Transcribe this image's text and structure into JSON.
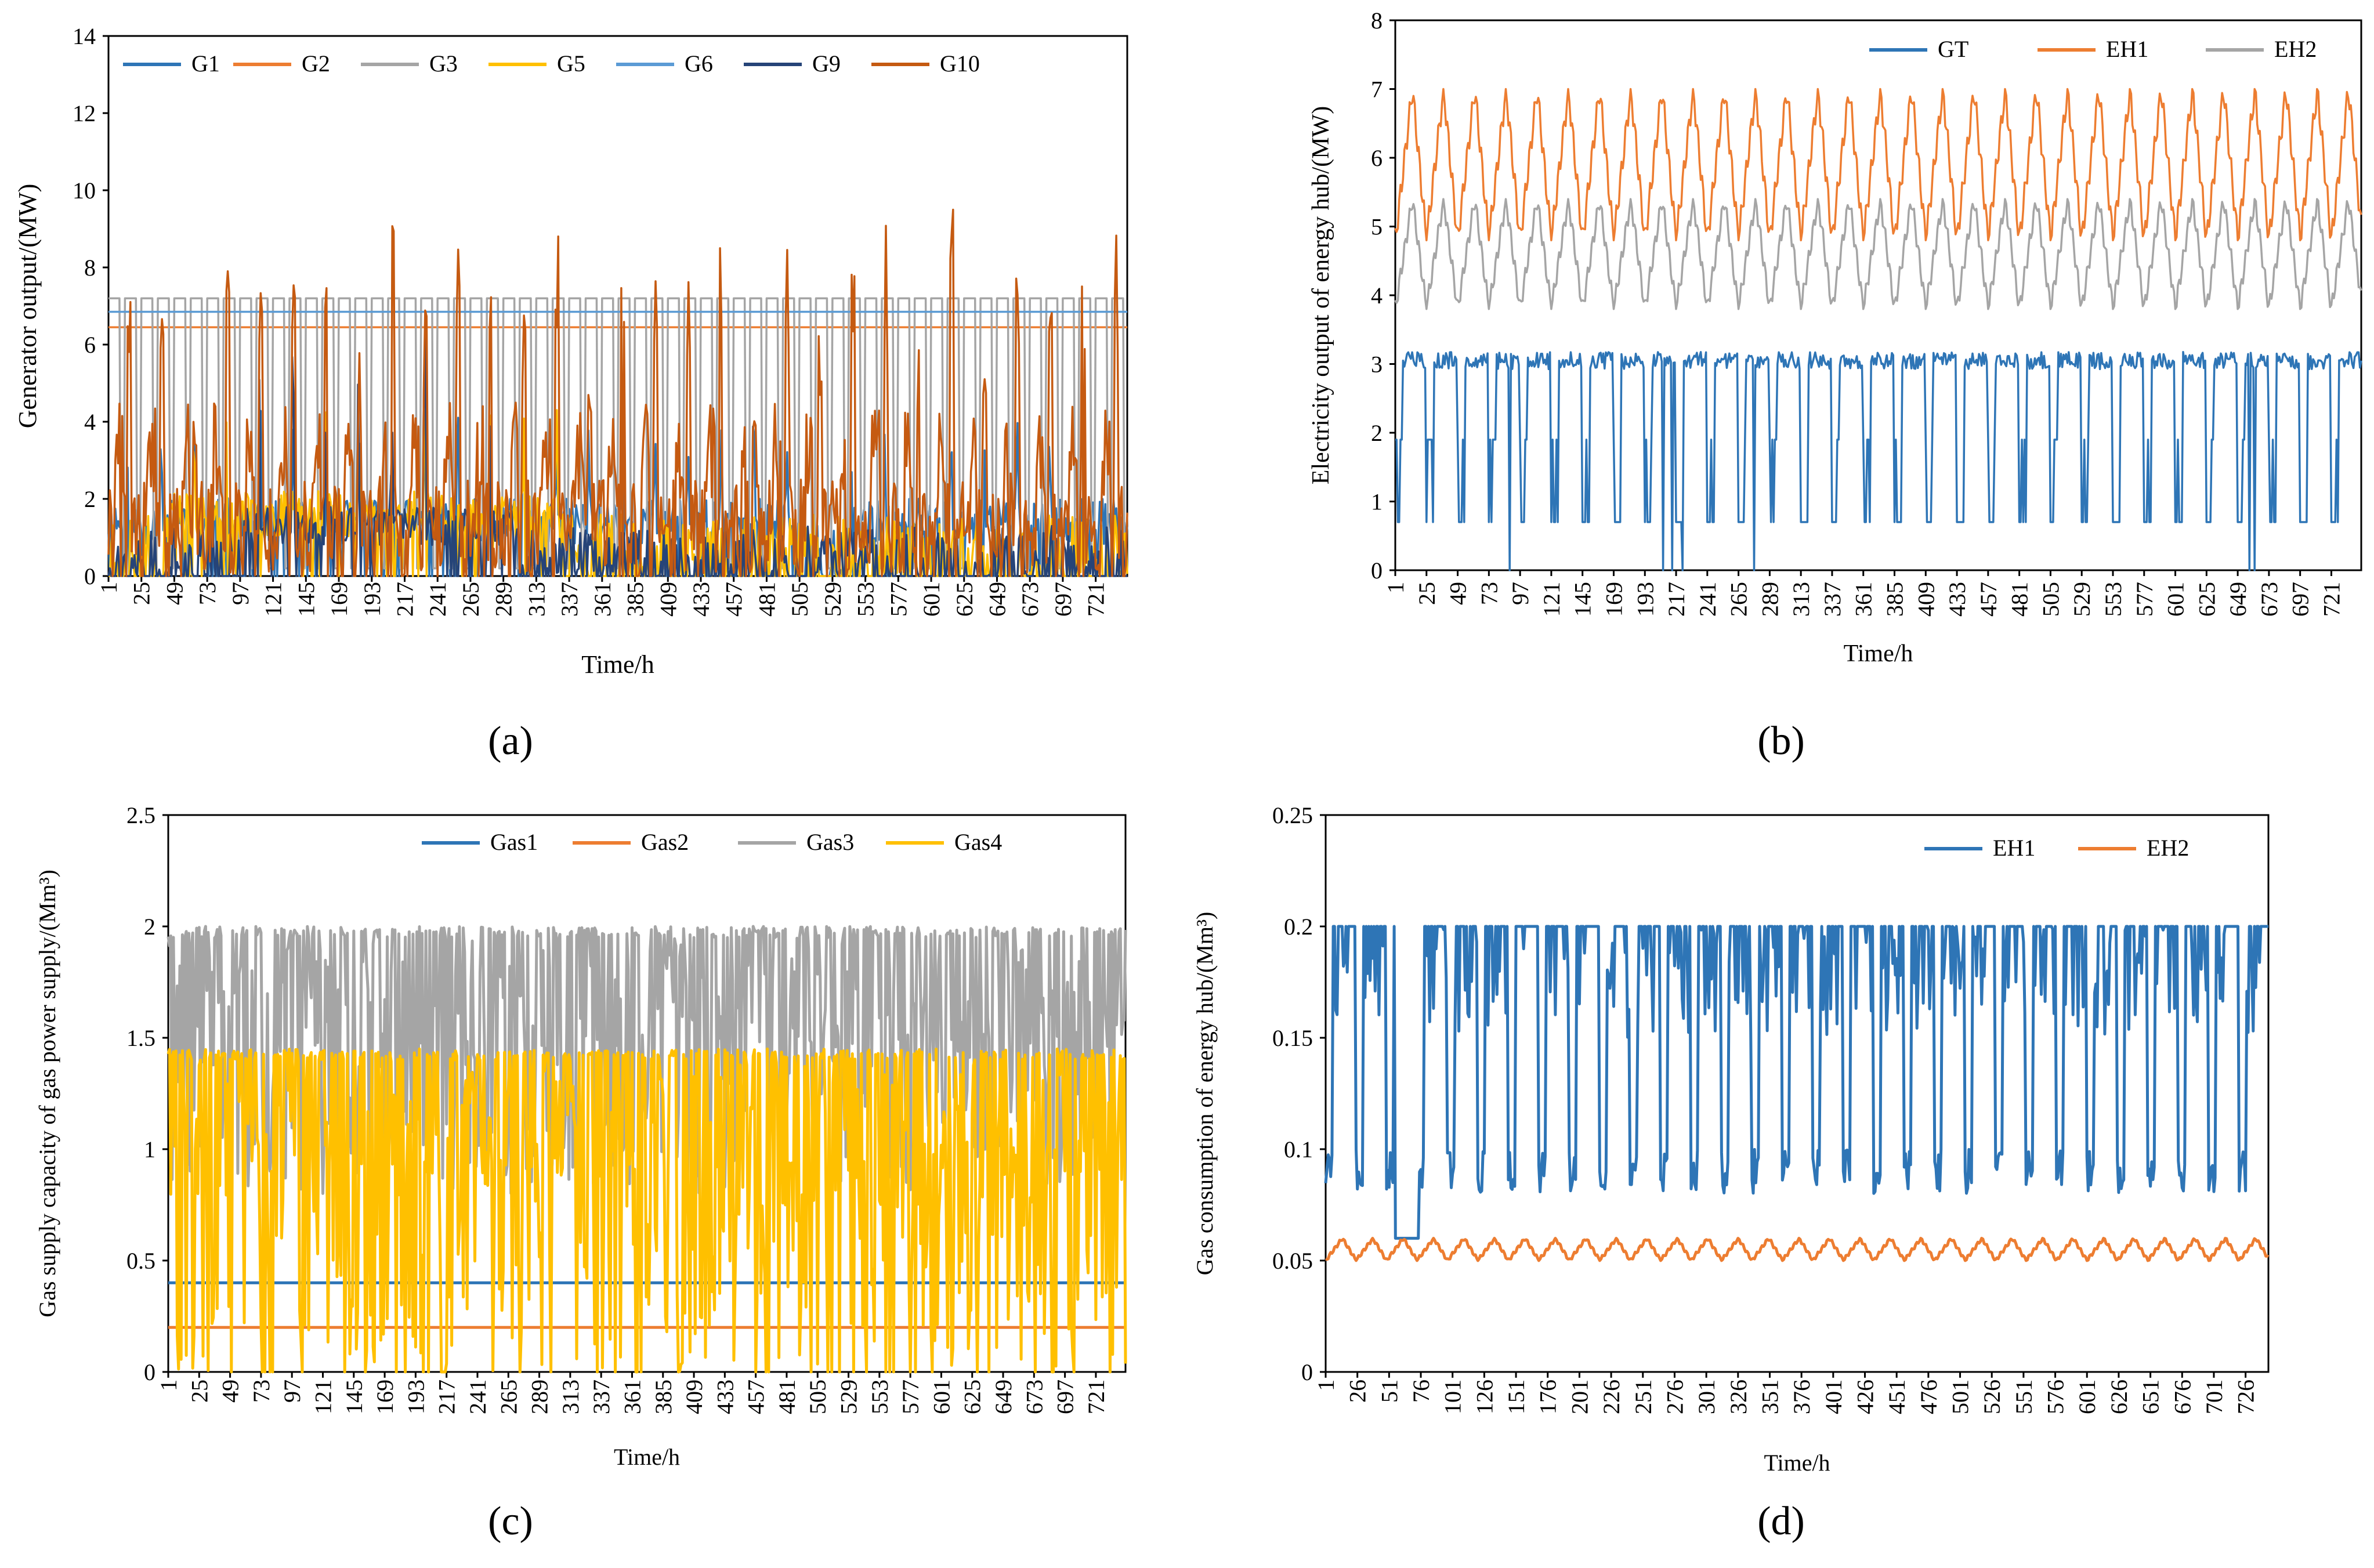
{
  "figure": {
    "panels": [
      {
        "id": "a",
        "caption": "(a)",
        "chart_data": {
          "type": "line",
          "title": "",
          "xlabel": "Time/h",
          "ylabel": "Generator output/(MW)",
          "ylim": [
            0,
            14
          ],
          "yticks": [
            0,
            2,
            4,
            6,
            8,
            10,
            12,
            14
          ],
          "xticks": [
            1,
            25,
            49,
            73,
            97,
            121,
            145,
            169,
            193,
            217,
            241,
            265,
            289,
            313,
            337,
            361,
            385,
            409,
            433,
            457,
            481,
            505,
            529,
            553,
            577,
            601,
            625,
            649,
            673,
            697,
            721
          ],
          "xrange": [
            1,
            744
          ],
          "legend_position": "top",
          "series": [
            {
              "name": "G1",
              "color": "#2e75b6",
              "pattern": {
                "kind": "noisy",
                "base": 1.4,
                "amp": 1.2,
                "peak": 2.5,
                "period": 24,
                "seed": 11,
                "max": 8.6,
                "active": [
                  [
                    1,
                    500
                  ],
                  [
                    540,
                    744
                  ]
                ]
              }
            },
            {
              "name": "G2",
              "color": "#ed7d31",
              "pattern": {
                "kind": "flat",
                "value": 6.45
              }
            },
            {
              "name": "G3",
              "color": "#a5a5a5",
              "pattern": {
                "kind": "steps",
                "high": 7.2,
                "low": 0.2,
                "period": 12,
                "duty": 0.75
              }
            },
            {
              "name": "G5",
              "color": "#ffc000",
              "pattern": {
                "kind": "noisy",
                "base": 1.6,
                "amp": 1.2,
                "peak": 2.8,
                "period": 24,
                "seed": 23,
                "max": 4.3,
                "active": [
                  [
                    40,
                    330
                  ]
                ]
              }
            },
            {
              "name": "G6",
              "color": "#5b9bd5",
              "pattern": {
                "kind": "flat",
                "value": 6.85
              }
            },
            {
              "name": "G9",
              "color": "#264478",
              "pattern": {
                "kind": "noisy",
                "base": 1.3,
                "amp": 1.0,
                "peak": 5.5,
                "period": 24,
                "seed": 37,
                "max": 8.6,
                "active": [
                  [
                    100,
                    300
                  ]
                ]
              }
            },
            {
              "name": "G10",
              "color": "#c55a11",
              "pattern": {
                "kind": "spiky",
                "base": 1.2,
                "amp": 2.6,
                "peak": 9.8,
                "period": 24,
                "seed": 41,
                "max": 11
              }
            }
          ]
        }
      },
      {
        "id": "b",
        "caption": "(b)",
        "chart_data": {
          "type": "line",
          "title": "",
          "xlabel": "Time/h",
          "ylabel": "Electricity output of energy hub/(MW)",
          "ylim": [
            0,
            8
          ],
          "yticks": [
            0,
            1,
            2,
            3,
            4,
            5,
            6,
            7,
            8
          ],
          "xticks": [
            1,
            25,
            49,
            73,
            97,
            121,
            145,
            169,
            193,
            217,
            241,
            265,
            289,
            313,
            337,
            361,
            385,
            409,
            433,
            457,
            481,
            505,
            529,
            553,
            577,
            601,
            625,
            649,
            673,
            697,
            721
          ],
          "xrange": [
            1,
            744
          ],
          "legend_position": "top-right",
          "series": [
            {
              "name": "GT",
              "color": "#2e75b6",
              "pattern": {
                "kind": "gt",
                "high": 3.05,
                "low": 0.7,
                "period": 24,
                "seed": 5
              }
            },
            {
              "name": "EH1",
              "color": "#ed7d31",
              "pattern": {
                "kind": "sawtooth",
                "low": 4.8,
                "high": 7.0,
                "period": 24
              }
            },
            {
              "name": "EH2",
              "color": "#a5a5a5",
              "pattern": {
                "kind": "sawtooth",
                "low": 3.8,
                "high": 5.4,
                "period": 24
              }
            }
          ]
        }
      },
      {
        "id": "c",
        "caption": "(c)",
        "chart_data": {
          "type": "line",
          "title": "",
          "xlabel": "Time/h",
          "ylabel": "Gas supply capacity of gas power supply/(Mm³)",
          "ylim": [
            0,
            2.5
          ],
          "yticks": [
            0,
            0.5,
            1,
            1.5,
            2,
            2.5
          ],
          "xticks": [
            1,
            25,
            49,
            73,
            97,
            121,
            145,
            169,
            193,
            217,
            241,
            265,
            289,
            313,
            337,
            361,
            385,
            409,
            433,
            457,
            481,
            505,
            529,
            553,
            577,
            601,
            625,
            649,
            673,
            697,
            721
          ],
          "xrange": [
            1,
            744
          ],
          "legend_position": "top",
          "series": [
            {
              "name": "Gas1",
              "color": "#2e75b6",
              "pattern": {
                "kind": "flat",
                "value": 0.4
              }
            },
            {
              "name": "Gas2",
              "color": "#ed7d31",
              "pattern": {
                "kind": "flat",
                "value": 0.2
              }
            },
            {
              "name": "Gas3",
              "color": "#a5a5a5",
              "pattern": {
                "kind": "band",
                "low": 0.8,
                "high": 2.0,
                "seed": 7
              }
            },
            {
              "name": "Gas4",
              "color": "#ffc000",
              "pattern": {
                "kind": "band",
                "low": 0.0,
                "high": 1.45,
                "seed": 13
              }
            }
          ]
        }
      },
      {
        "id": "d",
        "caption": "(d)",
        "chart_data": {
          "type": "line",
          "title": "",
          "xlabel": "Time/h",
          "ylabel": "Gas consumption of energy hub/(Mm³)",
          "ylim": [
            0,
            0.25
          ],
          "yticks": [
            0,
            0.05,
            0.1,
            0.15,
            0.2,
            0.25
          ],
          "xticks": [
            1,
            26,
            51,
            76,
            101,
            126,
            151,
            176,
            201,
            226,
            251,
            276,
            301,
            326,
            351,
            376,
            401,
            426,
            451,
            476,
            501,
            526,
            551,
            576,
            601,
            626,
            651,
            676,
            701,
            726
          ],
          "xrange": [
            1,
            744
          ],
          "legend_position": "top-right",
          "series": [
            {
              "name": "EH1",
              "color": "#2e75b6",
              "pattern": {
                "kind": "eh1gas",
                "high": 0.2,
                "low": 0.08,
                "period": 24,
                "seed": 3
              }
            },
            {
              "name": "EH2",
              "color": "#ed7d31",
              "pattern": {
                "kind": "sawtooth",
                "low": 0.05,
                "high": 0.06,
                "period": 24
              }
            }
          ]
        }
      }
    ]
  }
}
